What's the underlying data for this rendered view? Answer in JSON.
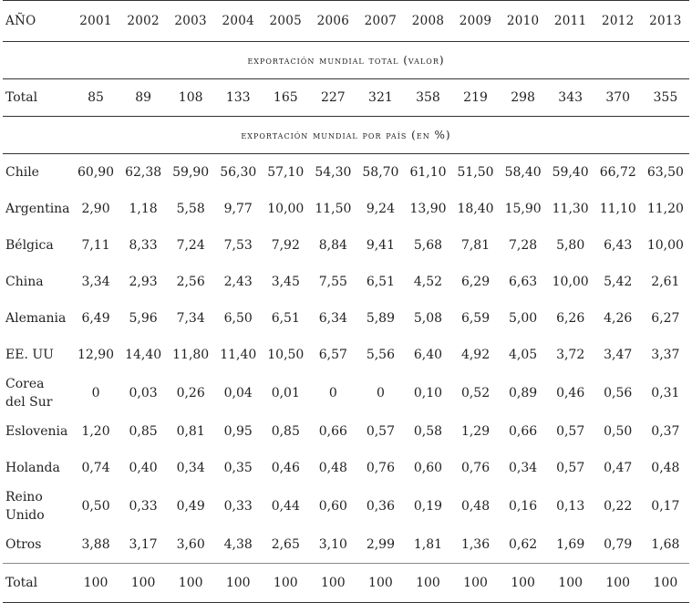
{
  "header": {
    "label": "AÑO",
    "years": [
      "2001",
      "2002",
      "2003",
      "2004",
      "2005",
      "2006",
      "2007",
      "2008",
      "2009",
      "2010",
      "2011",
      "2012",
      "2013"
    ]
  },
  "section_total": {
    "title": "EXPORTACIÓN MUNDIAL TOTAL (VALOR)",
    "row": {
      "label": "Total",
      "values": [
        "85",
        "89",
        "108",
        "133",
        "165",
        "227",
        "321",
        "358",
        "219",
        "298",
        "343",
        "370",
        "355"
      ]
    }
  },
  "section_country": {
    "title": "EXPORTACIÓN MUNDIAL POR PAÍS (EN %)",
    "rows": [
      {
        "label": "Chile",
        "values": [
          "60,90",
          "62,38",
          "59,90",
          "56,30",
          "57,10",
          "54,30",
          "58,70",
          "61,10",
          "51,50",
          "58,40",
          "59,40",
          "66,72",
          "63,50"
        ]
      },
      {
        "label": "Argentina",
        "values": [
          "2,90",
          "1,18",
          "5,58",
          "9,77",
          "10,00",
          "11,50",
          "9,24",
          "13,90",
          "18,40",
          "15,90",
          "11,30",
          "11,10",
          "11,20"
        ]
      },
      {
        "label": "Bélgica",
        "values": [
          "7,11",
          "8,33",
          "7,24",
          "7,53",
          "7,92",
          "8,84",
          "9,41",
          "5,68",
          "7,81",
          "7,28",
          "5,80",
          "6,43",
          "10,00"
        ]
      },
      {
        "label": "China",
        "values": [
          "3,34",
          "2,93",
          "2,56",
          "2,43",
          "3,45",
          "7,55",
          "6,51",
          "4,52",
          "6,29",
          "6,63",
          "10,00",
          "5,42",
          "2,61"
        ]
      },
      {
        "label": "Alemania",
        "values": [
          "6,49",
          "5,96",
          "7,34",
          "6,50",
          "6,51",
          "6,34",
          "5,89",
          "5,08",
          "6,59",
          "5,00",
          "6,26",
          "4,26",
          "6,27"
        ]
      },
      {
        "label": "EE. UU",
        "values": [
          "12,90",
          "14,40",
          "11,80",
          "11,40",
          "10,50",
          "6,57",
          "5,56",
          "6,40",
          "4,92",
          "4,05",
          "3,72",
          "3,47",
          "3,37"
        ]
      },
      {
        "label_line1": "Corea",
        "label_line2": "del Sur",
        "values": [
          "0",
          "0,03",
          "0,26",
          "0,04",
          "0,01",
          "0",
          "0",
          "0,10",
          "0,52",
          "0,89",
          "0,46",
          "0,56",
          "0,31"
        ]
      },
      {
        "label": "Eslovenia",
        "values": [
          "1,20",
          "0,85",
          "0,81",
          "0,95",
          "0,85",
          "0,66",
          "0,57",
          "0,58",
          "1,29",
          "0,66",
          "0,57",
          "0,50",
          "0,37"
        ]
      },
      {
        "label": "Holanda",
        "values": [
          "0,74",
          "0,40",
          "0,34",
          "0,35",
          "0,46",
          "0,48",
          "0,76",
          "0,60",
          "0,76",
          "0,34",
          "0,57",
          "0,47",
          "0,48"
        ]
      },
      {
        "label_line1": "Reino",
        "label_line2": "Unido",
        "values": [
          "0,50",
          "0,33",
          "0,49",
          "0,33",
          "0,44",
          "0,60",
          "0,36",
          "0,19",
          "0,48",
          "0,16",
          "0,13",
          "0,22",
          "0,17"
        ]
      },
      {
        "label": "Otros",
        "values": [
          "3,88",
          "3,17",
          "3,60",
          "4,38",
          "2,65",
          "3,10",
          "2,99",
          "1,81",
          "1,36",
          "0,62",
          "1,69",
          "0,79",
          "1,68"
        ]
      }
    ],
    "total": {
      "label": "Total",
      "values": [
        "100",
        "100",
        "100",
        "100",
        "100",
        "100",
        "100",
        "100",
        "100",
        "100",
        "100",
        "100",
        "100"
      ]
    }
  }
}
